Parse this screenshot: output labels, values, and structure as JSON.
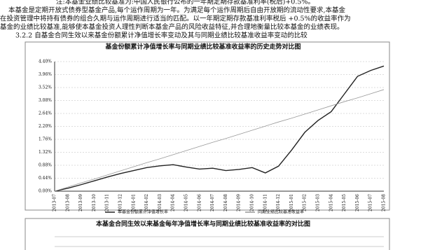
{
  "document": {
    "note": "注:本基金业绩比较基准为:中国人民银行公布的一年期定期存款基准利率(税后)+0.5%。",
    "paragraph": [
      "本基金是定期开放式债券型基金产品,每个运作周期为一年。为满足每个运作周期后自由开放期的流动性要求,本基金",
      "在投资管理中将持有债券的组合久期与运作周期进行适当的匹配。以一年期定期存款基准利率税后 +0.5%的收益率作为",
      "基金的业绩比较基准,能够使本基金投资人理性判断本基金产品的风险收益特征,并合理地衡量比较本基金的业绩表现。"
    ],
    "section": "3.2.2 自基金合同生效以来基金份额累计净值增长率变动及其与同期业绩比较基准收益率变动的比较",
    "second_chart_title": "本基金合同生效以来基金每年净值增长率与同期业绩比较基准收益率的对比图"
  },
  "chart_data": {
    "type": "line",
    "title": "基金份额累计净值增长率与同期业绩比较基准收益率的历史走势对比图",
    "categories": [
      "2013-07",
      "2013-08",
      "2013-09",
      "2013-10",
      "2013-11",
      "2013-12",
      "2014-01",
      "2014-02",
      "2014-03",
      "2014-04",
      "2014-05",
      "2014-06",
      "2014-07",
      "2014-08",
      "2014-09",
      "2014-10",
      "2014-11",
      "2014-12",
      "2015-01",
      "2015-02",
      "2015-03",
      "2015-04",
      "2015-05",
      "2015-06",
      "2015-07",
      "2015-08"
    ],
    "series": [
      {
        "name": "本基金份额累计净值增长率",
        "color": "#222222",
        "values": [
          0.0,
          0.1,
          0.22,
          0.35,
          0.48,
          0.6,
          0.7,
          0.8,
          0.86,
          0.9,
          0.82,
          0.75,
          0.78,
          0.7,
          0.74,
          0.8,
          0.62,
          0.85,
          1.4,
          2.0,
          2.4,
          2.7,
          3.3,
          3.9,
          4.1,
          4.25
        ]
      },
      {
        "name": "同期业绩比较基准收益率",
        "color": "#999999",
        "values": [
          0,
          0.14,
          0.28,
          0.41,
          0.55,
          0.69,
          0.83,
          0.97,
          1.1,
          1.24,
          1.38,
          1.52,
          1.66,
          1.79,
          1.93,
          2.07,
          2.21,
          2.35,
          2.48,
          2.62,
          2.76,
          2.9,
          3.04,
          3.17,
          3.31,
          3.45
        ]
      }
    ],
    "ylim": [
      0,
      4.4
    ],
    "yticks": [
      {
        "value": 0,
        "label": "0.00%"
      },
      {
        "value": 0.44,
        "label": "0.44%"
      },
      {
        "value": 0.88,
        "label": "0.88%"
      },
      {
        "value": 1.32,
        "label": "1.32%"
      },
      {
        "value": 1.76,
        "label": "1.76%"
      },
      {
        "value": 2.2,
        "label": "2.20%"
      },
      {
        "value": 2.64,
        "label": "2.64%"
      },
      {
        "value": 3.08,
        "label": "3.08%"
      },
      {
        "value": 3.52,
        "label": "3.52%"
      },
      {
        "value": 3.96,
        "label": "3.96%"
      },
      {
        "value": 4.4,
        "label": "4.40%"
      }
    ],
    "grid": true
  }
}
